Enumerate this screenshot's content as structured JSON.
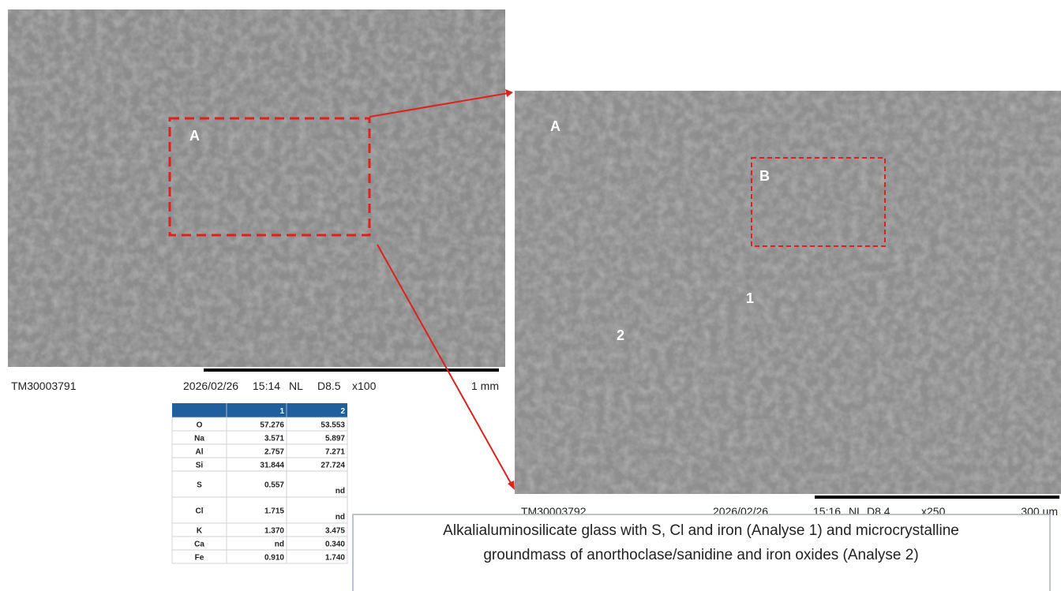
{
  "left_image": {
    "labels": {
      "a": "A"
    },
    "footer": {
      "id": "TM30003791",
      "date": "2026/02/26",
      "time": "15:14",
      "mode": "NL",
      "distance": "D8.5",
      "magnification": "x100",
      "scale": "1 mm"
    }
  },
  "right_image": {
    "labels": {
      "a": "A",
      "b": "B",
      "one": "1",
      "two": "2"
    },
    "footer": {
      "id": "TM30003792",
      "date": "2026/02/26",
      "time": "15:16",
      "mode": "NL",
      "distance": "D8.4",
      "magnification": "x250",
      "scale": "300 um"
    }
  },
  "table": {
    "columns": [
      "1",
      "2"
    ],
    "rows": [
      [
        "O",
        "57.276",
        "53.553"
      ],
      [
        "Na",
        "3.571",
        "5.897"
      ],
      [
        "Al",
        "2.757",
        "7.271"
      ],
      [
        "Si",
        "31.844",
        "27.724"
      ],
      [
        "S",
        "0.557",
        "nd"
      ],
      [
        "Cl",
        "1.715",
        "nd"
      ],
      [
        "K",
        "1.370",
        "3.475"
      ],
      [
        "Ca",
        "nd",
        "0.340"
      ],
      [
        "Fe",
        "0.910",
        "1.740"
      ]
    ]
  },
  "caption": [
    "Alkalialuminosilicate glass with S, Cl and iron (Analyse 1) and microcrystalline",
    "groundmass of anorthoclase/sanidine and iron oxides (Analyse 2)"
  ]
}
